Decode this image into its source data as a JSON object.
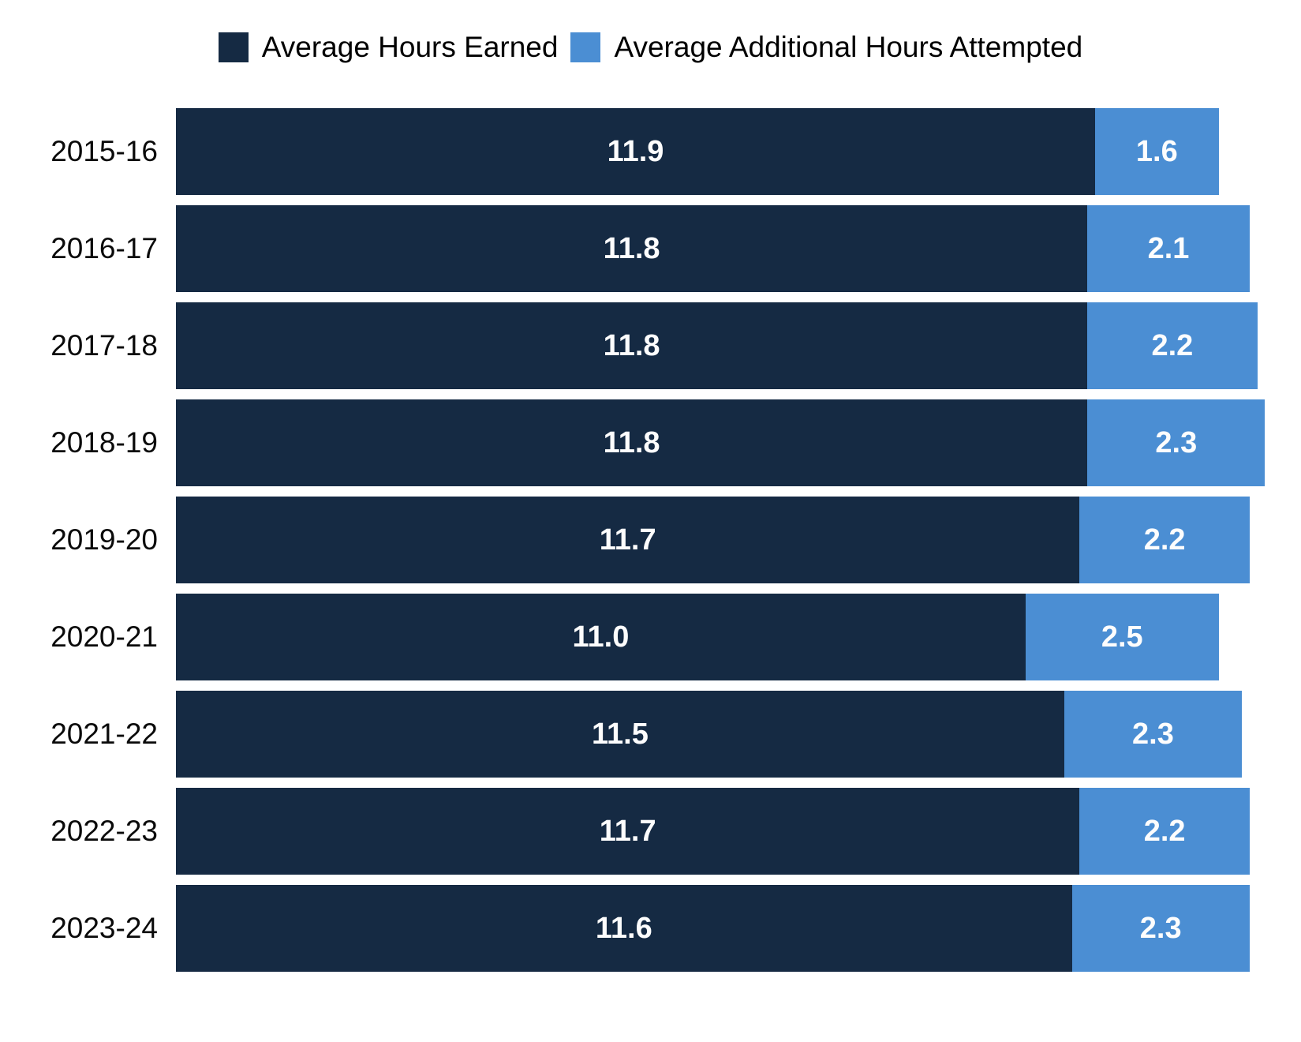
{
  "chart_data": {
    "type": "bar",
    "orientation": "horizontal",
    "stacked": true,
    "title": "",
    "xlabel": "",
    "ylabel": "",
    "xlim": [
      0,
      14.4
    ],
    "grid": false,
    "legend_position": "top",
    "value_label_color": "#fdfdfd",
    "categories": [
      "2015-16",
      "2016-17",
      "2017-18",
      "2018-19",
      "2019-20",
      "2020-21",
      "2021-22",
      "2022-23",
      "2023-24"
    ],
    "series": [
      {
        "name": "Average Hours Earned",
        "color": "#152a43",
        "values": [
          11.9,
          11.8,
          11.8,
          11.8,
          11.7,
          11.0,
          11.5,
          11.7,
          11.6
        ],
        "labels": [
          "11.9",
          "11.8",
          "11.8",
          "11.8",
          "11.7",
          "11.0",
          "11.5",
          "11.7",
          "11.6"
        ]
      },
      {
        "name": "Average Additional Hours Attempted",
        "color": "#4b8ed3",
        "values": [
          1.6,
          2.1,
          2.2,
          2.3,
          2.2,
          2.5,
          2.3,
          2.2,
          2.3
        ],
        "labels": [
          "1.6",
          "2.1",
          "2.2",
          "2.3",
          "2.2",
          "2.5",
          "2.3",
          "2.2",
          "2.3"
        ]
      }
    ]
  }
}
